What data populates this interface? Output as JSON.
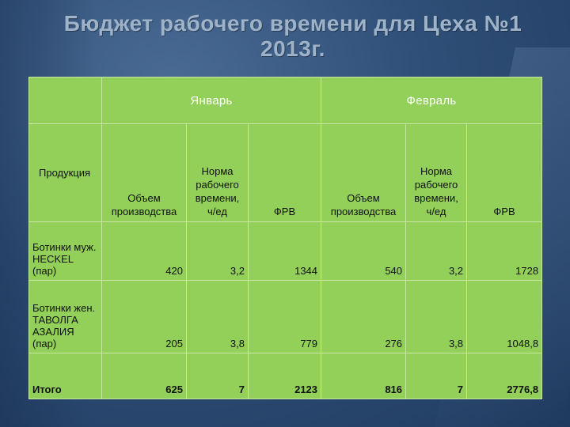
{
  "title": {
    "line1": "Бюджет рабочего времени для Цеха №1",
    "line2": "2013г."
  },
  "table": {
    "month_jan": "Январь",
    "month_feb": "Февраль",
    "product_header": "Продукция",
    "col_volume": "Объем производства",
    "col_norm_line1": "Норма",
    "col_norm_line2": "рабочего",
    "col_norm_line3": "времени,",
    "col_norm_line4": "ч/ед",
    "col_frv": "ФРВ",
    "rows": [
      {
        "product_lines": [
          "Ботинки муж.",
          "HECKEL",
          "(пар)"
        ],
        "jan_volume": "420",
        "jan_norm": "3,2",
        "jan_frv": "1344",
        "feb_volume": "540",
        "feb_norm": "3,2",
        "feb_frv": "1728"
      },
      {
        "product_lines": [
          "Ботинки жен.",
          "ТАВОЛГА",
          "АЗАЛИЯ",
          "(пар)"
        ],
        "jan_volume": "205",
        "jan_norm": "3,8",
        "jan_frv": "779",
        "feb_volume": "276",
        "feb_norm": "3,8",
        "feb_frv": "1048,8"
      }
    ],
    "total": {
      "label": "Итого",
      "jan_volume": "625",
      "jan_norm": "7",
      "jan_frv": "2123",
      "feb_volume": "816",
      "feb_norm": "7",
      "feb_frv": "2776,8"
    }
  }
}
